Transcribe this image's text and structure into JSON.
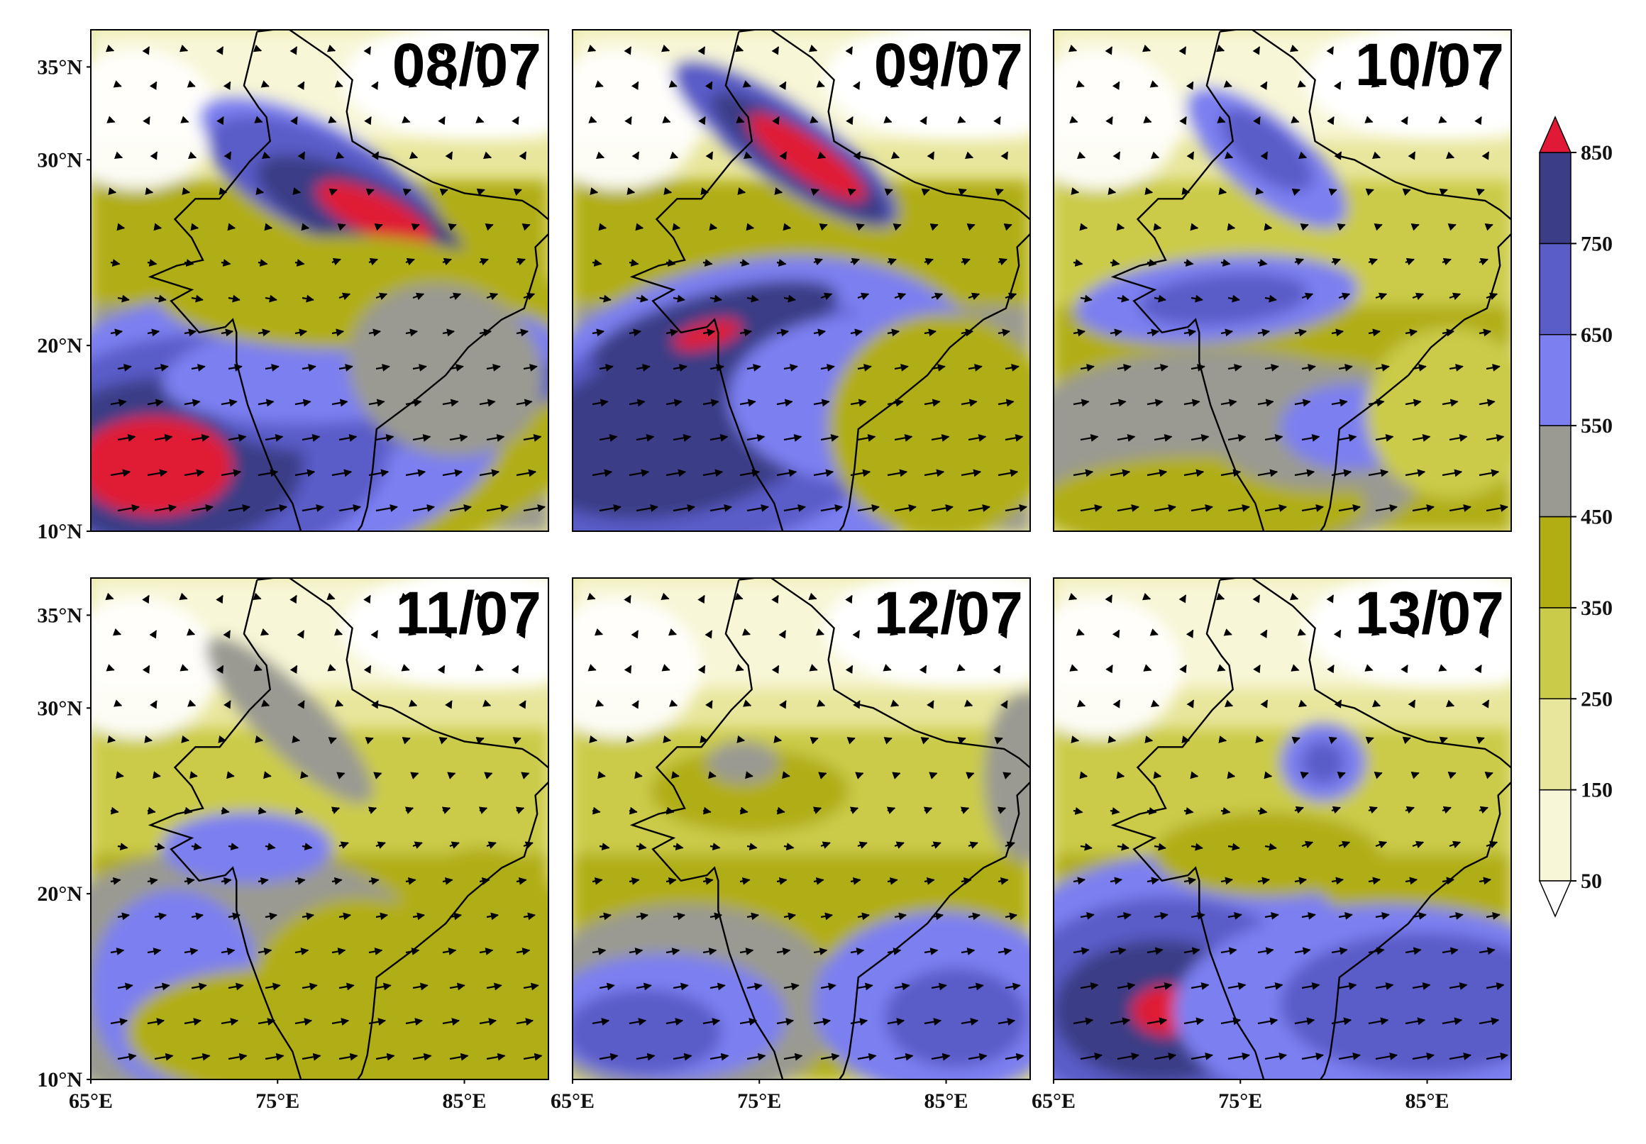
{
  "panels": [
    {
      "label": "08/07",
      "state": "strong",
      "hotspot": "south-west"
    },
    {
      "label": "09/07",
      "state": "strong",
      "hotspot": "north"
    },
    {
      "label": "10/07",
      "state": "moderate",
      "hotspot": "none"
    },
    {
      "label": "11/07",
      "state": "weak",
      "hotspot": "none"
    },
    {
      "label": "12/07",
      "state": "weak",
      "hotspot": "none"
    },
    {
      "label": "13/07",
      "state": "moderate",
      "hotspot": "south"
    }
  ],
  "axes": {
    "lat_ticks": [
      "10°N",
      "20°N",
      "30°N",
      "35°N"
    ],
    "lon_ticks": [
      "65°E",
      "75°E",
      "85°E"
    ],
    "lat_range": [
      10,
      37
    ],
    "lon_range": [
      65,
      89.5
    ]
  },
  "colorbar": {
    "labels": [
      "50",
      "150",
      "250",
      "350",
      "450",
      "550",
      "650",
      "750",
      "850"
    ],
    "colors": [
      "#f7f6d6",
      "#e8e69c",
      "#cbcb4a",
      "#b0ae12",
      "#9a9a92",
      "#7c7ff0",
      "#5a5cc8",
      "#3b3d86",
      "#8e2241"
    ],
    "extend_high": "#e01a36",
    "extend_low": "#ffffff"
  }
}
